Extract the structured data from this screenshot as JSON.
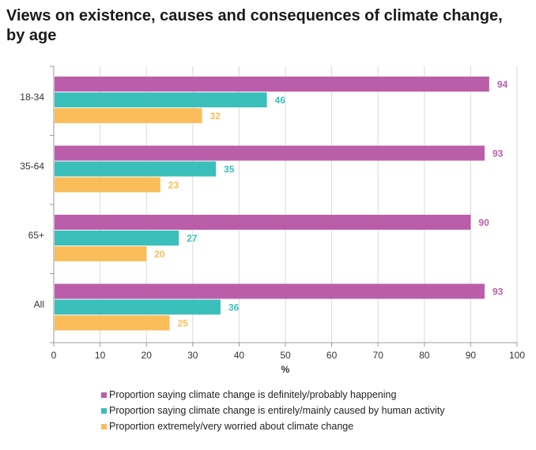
{
  "chart_data": {
    "type": "bar",
    "orientation": "horizontal",
    "title": "Views on existence, causes and consequences of climate change, by age",
    "xlabel": "%",
    "ylabel": "",
    "xlim": [
      0,
      100
    ],
    "xticks": [
      0,
      10,
      20,
      30,
      40,
      50,
      60,
      70,
      80,
      90,
      100
    ],
    "grid": true,
    "legend_position": "bottom",
    "categories": [
      "18-34",
      "35-64",
      "65+",
      "All"
    ],
    "series": [
      {
        "name": "Proportion saying climate change is definitely/probably happening",
        "color": "#bb5ea9",
        "values": [
          94,
          93,
          90,
          93
        ]
      },
      {
        "name": "Proportion saying climate change is entirely/mainly caused by human activity",
        "color": "#3bbfbb",
        "values": [
          46,
          35,
          27,
          36
        ]
      },
      {
        "name": "Proportion extremely/very worried about climate change",
        "color": "#fbbd59",
        "values": [
          32,
          23,
          20,
          25
        ]
      }
    ]
  }
}
